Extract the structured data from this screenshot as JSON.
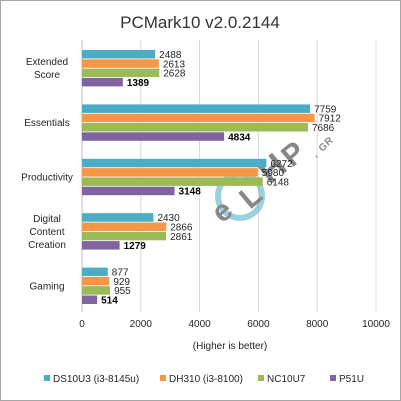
{
  "chart_data": {
    "type": "bar",
    "orientation": "horizontal",
    "title": "PCMark10 v2.0.2144",
    "xlabel": "(Higher is better)",
    "ylabel": "",
    "xlim": [
      0,
      10000
    ],
    "xticks": [
      "0",
      "2000",
      "4000",
      "6000",
      "8000",
      "10000"
    ],
    "xtick_values": [
      0,
      2000,
      4000,
      6000,
      8000,
      10000
    ],
    "grid": true,
    "legend_position": "bottom",
    "categories": [
      [
        "Extended",
        "Score"
      ],
      [
        "Essentials"
      ],
      [
        "Productivity"
      ],
      [
        "Digital",
        "Content",
        "Creation"
      ],
      [
        "Gaming"
      ]
    ],
    "series": [
      {
        "name": "DS10U3 (i3-8145u)",
        "color": "#4bacc6",
        "values": [
          2488,
          7759,
          6272,
          2430,
          877
        ]
      },
      {
        "name": "DH310 (i3-8100)",
        "color": "#f79646",
        "values": [
          2613,
          7912,
          5980,
          2866,
          929
        ]
      },
      {
        "name": "NC10U7",
        "color": "#9bbb59",
        "values": [
          2628,
          7686,
          6148,
          2861,
          955
        ]
      },
      {
        "name": "P51U",
        "color": "#8064a2",
        "values": [
          1389,
          4834,
          3148,
          1279,
          514
        ]
      }
    ]
  },
  "watermark": {
    "text": "eLHP.GR"
  }
}
